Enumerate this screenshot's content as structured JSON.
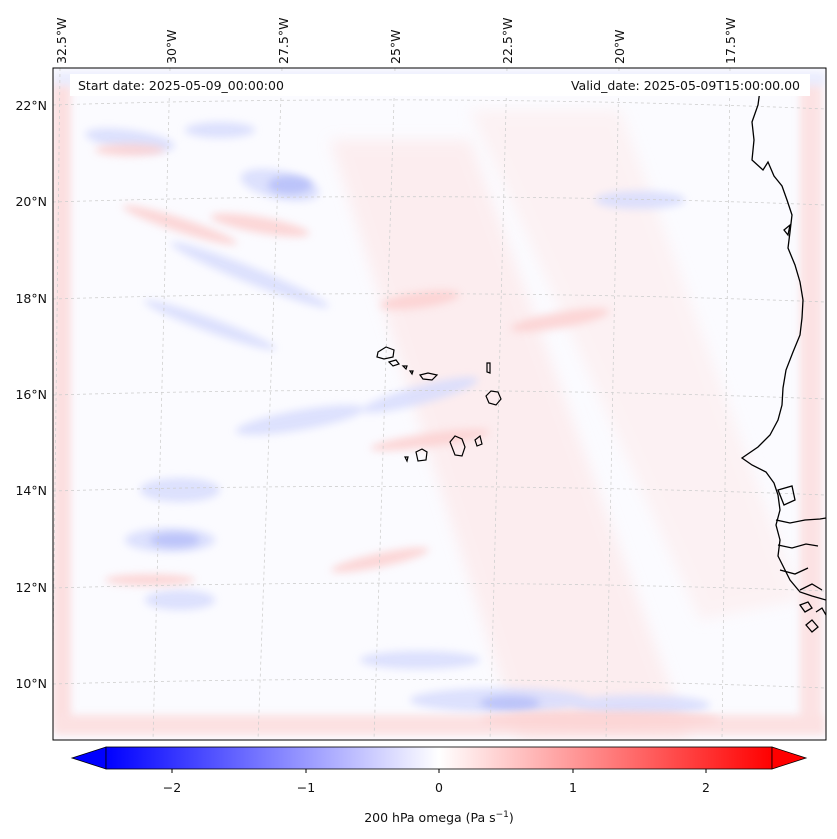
{
  "header": {
    "start_date": "Start date: 2025-05-09_00:00:00",
    "valid_date": "Valid_date: 2025-05-09T15:00:00.00"
  },
  "map": {
    "lon_ticks": [
      "32.5°W",
      "30°W",
      "27.5°W",
      "25°W",
      "22.5°W",
      "20°W",
      "17.5°W"
    ],
    "lat_ticks": [
      "22°N",
      "20°N",
      "18°N",
      "16°N",
      "14°N",
      "12°N",
      "10°N"
    ],
    "field": "omega (vertical velocity) at 200 hPa",
    "colormap": "bwr",
    "gridlines": true
  },
  "colorbar": {
    "label": "200 hPa omega (Pa s",
    "label_sup": "−1",
    "label_end": ")",
    "tick_labels": [
      "−2",
      "−1",
      "0",
      "1",
      "2"
    ],
    "tick_values": [
      -2,
      -1,
      0,
      1,
      2
    ],
    "range": [
      -2.5,
      2.5
    ],
    "extend": "both",
    "low_color": "#0000ff",
    "mid_color": "#ffffff",
    "high_color": "#ff0000"
  }
}
